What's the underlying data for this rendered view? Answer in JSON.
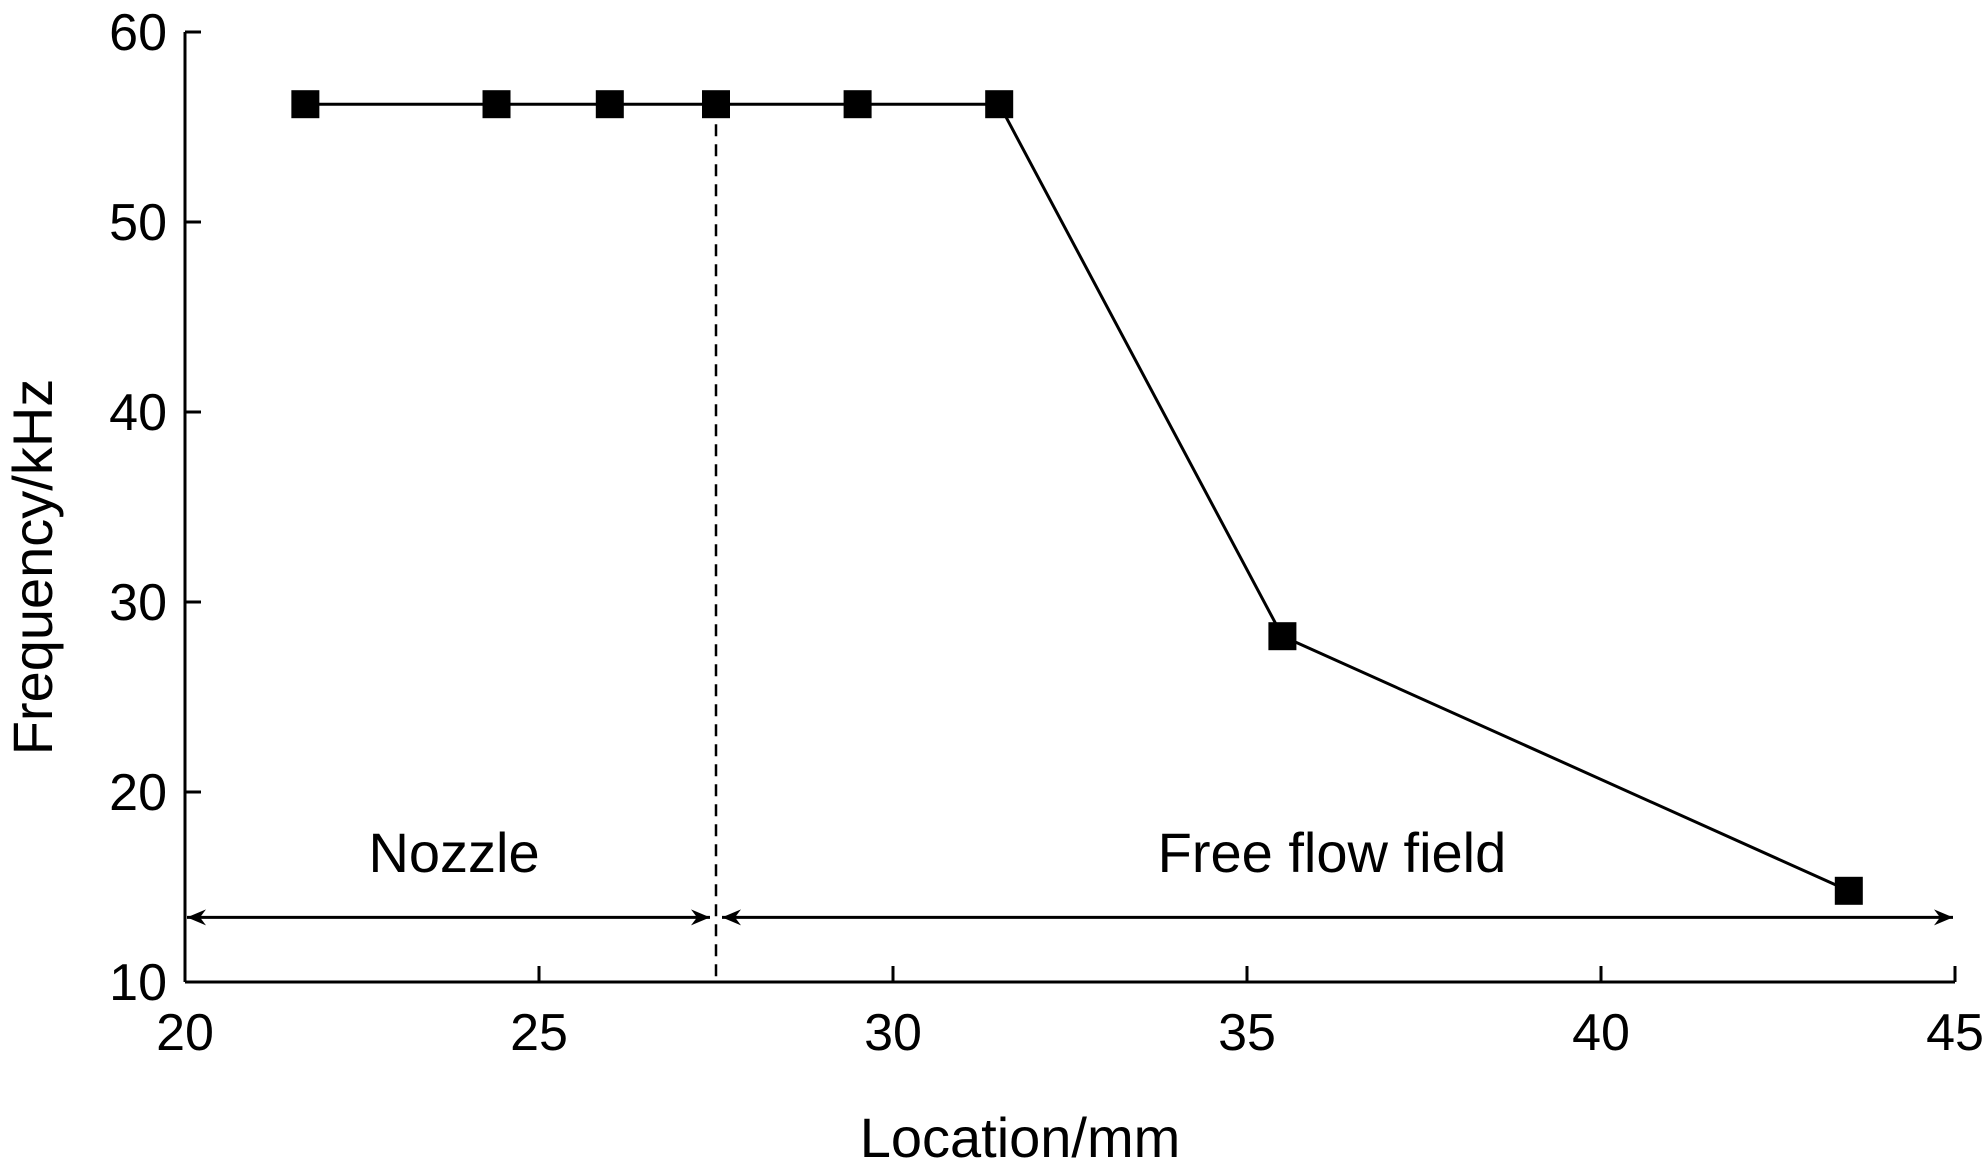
{
  "chart_data": {
    "type": "line",
    "title": "",
    "xlabel": "Location/mm",
    "ylabel": "Frequency/kHz",
    "xlim": [
      20,
      45
    ],
    "ylim": [
      10,
      60
    ],
    "x_ticks": [
      20,
      25,
      30,
      35,
      40,
      45
    ],
    "y_ticks": [
      10,
      20,
      30,
      40,
      50,
      60
    ],
    "grid": false,
    "legend": "none",
    "marker": "square",
    "series": [
      {
        "x": [
          21.7,
          24.4,
          26.0,
          27.5,
          29.5,
          31.5,
          35.5,
          43.5
        ],
        "y": [
          56.2,
          56.2,
          56.2,
          56.2,
          56.2,
          56.2,
          28.2,
          14.8
        ]
      }
    ],
    "annotations": {
      "divider_x": 27.5,
      "arrow_y": 13.4,
      "regions": [
        {
          "label": "Nozzle",
          "x_from": 20,
          "x_to": 27.5,
          "label_x": 23.8,
          "label_y": 15.8
        },
        {
          "label": "Free flow field",
          "x_from": 27.5,
          "x_to": 45,
          "label_x": 36.2,
          "label_y": 15.8
        }
      ]
    },
    "colors": {
      "line": "#000000",
      "marker": "#000000",
      "axis": "#000000"
    }
  }
}
